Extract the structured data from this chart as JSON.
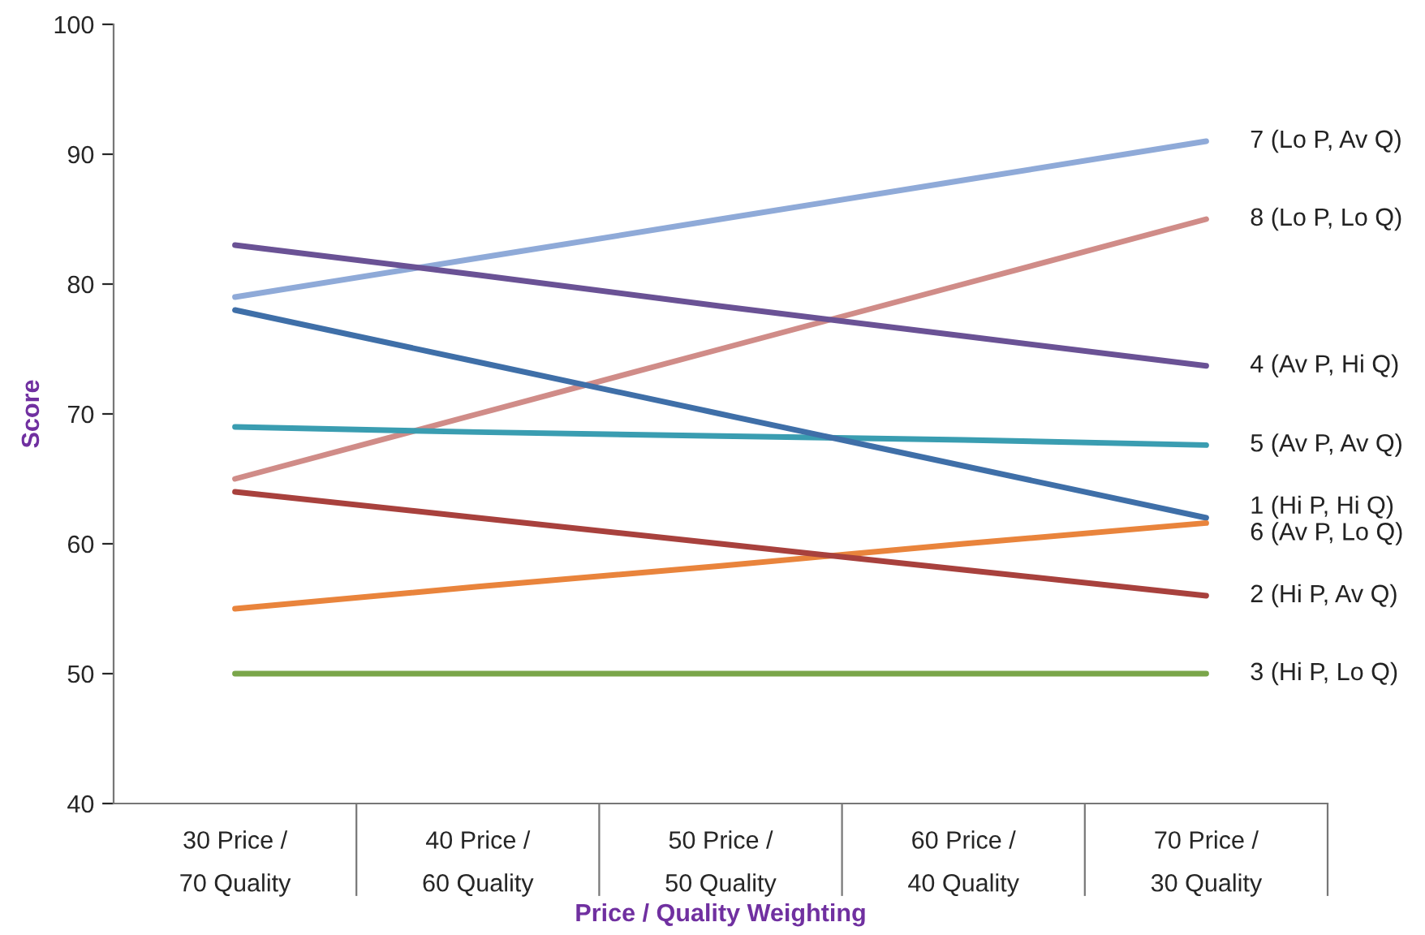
{
  "chart_data": {
    "type": "line",
    "xlabel": "Price / Quality Weighting",
    "ylabel": "Score",
    "categories": [
      "30 Price /\n70 Quality",
      "40 Price /\n60 Quality",
      "50 Price /\n50 Quality",
      "60 Price /\n40 Quality",
      "70 Price /\n30 Quality"
    ],
    "ylim": [
      40,
      100
    ],
    "yticks": [
      40,
      50,
      60,
      70,
      80,
      90,
      100
    ],
    "grid": false,
    "legend": false,
    "marker": "none",
    "line_style": "solid",
    "series": [
      {
        "name": "7 (Lo P, Av Q)",
        "color": "#8faad8",
        "values": [
          79,
          82,
          85,
          88,
          91
        ]
      },
      {
        "name": "8 (Lo P, Lo Q)",
        "color": "#d08c88",
        "values": [
          65,
          70,
          75,
          80,
          85
        ]
      },
      {
        "name": "4 (Av P, Hi Q)",
        "color": "#6a5295",
        "values": [
          83,
          80.7,
          78.3,
          76,
          73.7
        ]
      },
      {
        "name": "5 (Av P, Av Q)",
        "color": "#3a9db1",
        "values": [
          69,
          68.6,
          68.3,
          68,
          67.6
        ]
      },
      {
        "name": "1 (Hi P, Hi Q)",
        "color": "#3f6fa8",
        "values": [
          78,
          74,
          70,
          66,
          62
        ]
      },
      {
        "name": "6 (Av P, Lo Q)",
        "color": "#e9843c",
        "values": [
          55,
          56.7,
          58.3,
          60,
          61.6
        ]
      },
      {
        "name": "2 (Hi P, Av Q)",
        "color": "#a8413d",
        "values": [
          64,
          62,
          60,
          58,
          56
        ]
      },
      {
        "name": "3 (Hi P, Lo Q)",
        "color": "#7aa64a",
        "values": [
          50,
          50,
          50,
          50,
          50
        ]
      }
    ]
  }
}
